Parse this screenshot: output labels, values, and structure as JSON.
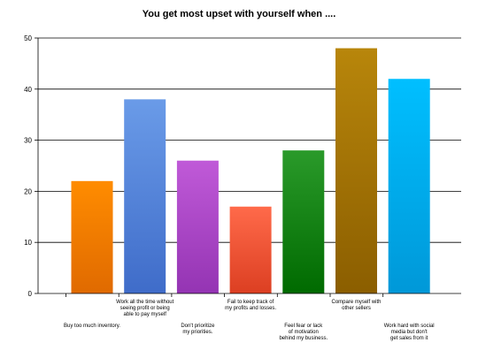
{
  "chart_data": {
    "type": "bar",
    "title": "You get most upset with yourself when ....",
    "xlabel": "",
    "ylabel": "",
    "ylim": [
      0,
      50
    ],
    "yticks": [
      0,
      10,
      20,
      30,
      40,
      50
    ],
    "grid": true,
    "legend": "none",
    "categories": [
      "Buy too much inventory.",
      "Work all the time without seeing profit or being able to pay myself",
      "Don't prioritize my priorities.",
      "Fail to keep track of my profits and losses.",
      "Feel fear or lack of motivation behind my business.",
      "Compare myself with other sellers",
      "Work hard with social media but don't get sales from it"
    ],
    "category_lines": [
      [
        "Buy too much inventory."
      ],
      [
        "Work all the time without",
        "seeing profit or being",
        "able to pay myself"
      ],
      [
        "Don't prioritize",
        "my priorities."
      ],
      [
        "Fail to keep track of",
        "my profits and losses."
      ],
      [
        "Feel fear or lack",
        "of motivation",
        "behind my business."
      ],
      [
        "Compare myself with",
        "other sellers"
      ],
      [
        "Work hard with social",
        "media but don't",
        "get sales from it"
      ]
    ],
    "values": [
      22,
      38,
      26,
      17,
      28,
      48,
      42
    ],
    "colors": [
      [
        "#ff8c00",
        "#e06a00"
      ],
      [
        "#6a9be8",
        "#3f6cc9"
      ],
      [
        "#c05ad8",
        "#9434b3"
      ],
      [
        "#ff6a4a",
        "#dc3f22"
      ],
      [
        "#2a9a2a",
        "#006a00"
      ],
      [
        "#b8860b",
        "#8b5e00"
      ],
      [
        "#00bfff",
        "#0098d8"
      ]
    ]
  }
}
